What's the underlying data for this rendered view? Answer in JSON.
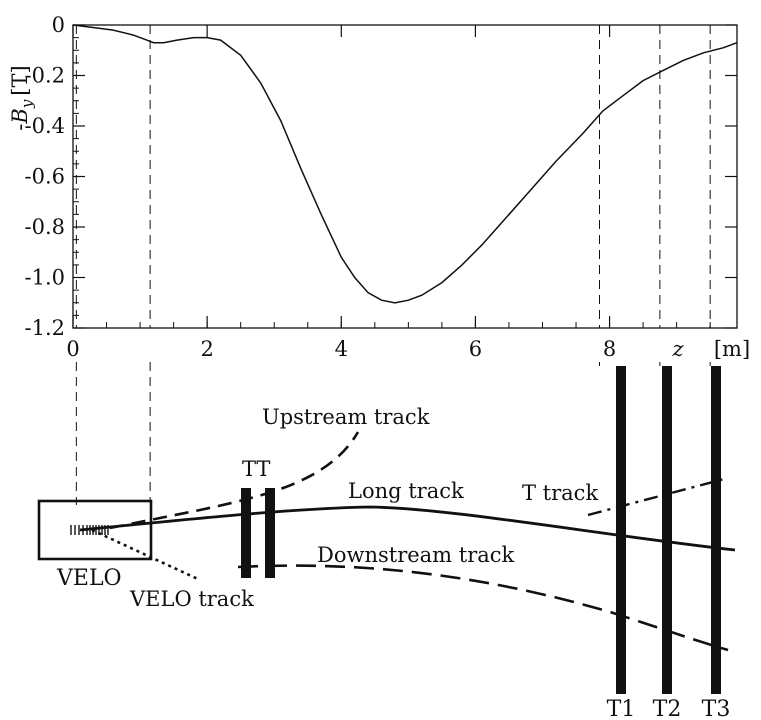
{
  "chart_data": {
    "type": "line",
    "title": "",
    "ylabel": "-B_y [T]",
    "ylabel_parts": {
      "minus": "-",
      "symbol": "B",
      "sub": "y",
      "unit": "[T]"
    },
    "xlabel": "z [m]",
    "xlabel_parts": {
      "symbol": "z",
      "unit": "[m]"
    },
    "xlim": [
      0,
      9.9
    ],
    "ylim": [
      -1.2,
      0.0
    ],
    "grid": false,
    "x_tick_labels": [
      "0",
      "2",
      "4",
      "6",
      "8"
    ],
    "x_tick_values": [
      0,
      2,
      4,
      6,
      8
    ],
    "y_tick_labels": [
      "0",
      "-0.2",
      "-0.4",
      "-0.6",
      "-0.8",
      "-1.0",
      "-1.2"
    ],
    "y_tick_values": [
      0,
      -0.2,
      -0.4,
      -0.6,
      -0.8,
      -1.0,
      -1.2
    ],
    "series": [
      {
        "x": [
          0,
          0.3,
          0.6,
          0.9,
          1.1,
          1.2,
          1.35,
          1.55,
          1.8,
          2.0,
          2.2,
          2.5,
          2.8,
          3.1,
          3.4,
          3.7,
          4.0,
          4.2,
          4.4,
          4.6,
          4.8,
          5.0,
          5.2,
          5.5,
          5.8,
          6.1,
          6.4,
          6.8,
          7.2,
          7.6,
          7.9,
          8.2,
          8.5,
          8.8,
          9.1,
          9.4,
          9.7,
          9.9
        ],
        "y": [
          0.0,
          -0.01,
          -0.02,
          -0.04,
          -0.06,
          -0.07,
          -0.07,
          -0.06,
          -0.05,
          -0.05,
          -0.06,
          -0.12,
          -0.23,
          -0.38,
          -0.57,
          -0.75,
          -0.92,
          -1.0,
          -1.06,
          -1.09,
          -1.1,
          -1.09,
          -1.07,
          -1.02,
          -0.95,
          -0.87,
          -0.78,
          -0.66,
          -0.54,
          -0.43,
          -0.34,
          -0.28,
          -0.22,
          -0.18,
          -0.14,
          -0.11,
          -0.09,
          -0.07
        ]
      }
    ],
    "reference_lines_x": [
      0.05,
      1.15,
      7.85,
      8.75,
      9.5
    ]
  },
  "diagram": {
    "detector_labels": {
      "velo": "VELO",
      "tt": "TT",
      "t1": "T1",
      "t2": "T2",
      "t3": "T3"
    },
    "track_labels": {
      "upstream": "Upstream track",
      "long": "Long track",
      "t_track": "T track",
      "downstream": "Downstream track",
      "velo_track": "VELO track"
    }
  }
}
